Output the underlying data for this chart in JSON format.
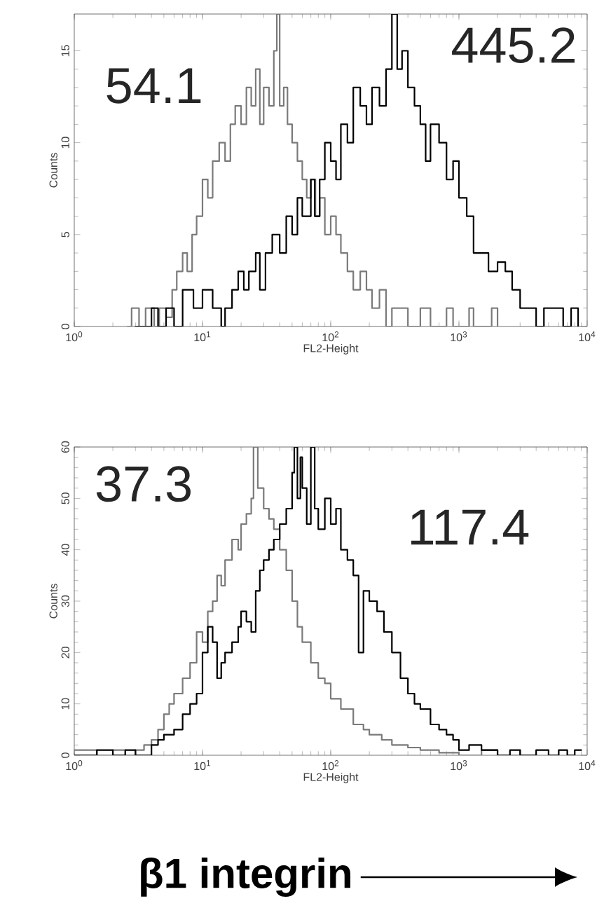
{
  "chart_data": [
    {
      "type": "step",
      "xlabel": "FL2-Height",
      "ylabel": "Counts",
      "log": "x",
      "xlim": [
        1,
        10000
      ],
      "ylim": [
        0,
        17
      ],
      "xticks": [
        {
          "value": 1,
          "label": "10$^{0}$"
        },
        {
          "value": 10,
          "label": "10$^{1}$"
        },
        {
          "value": 100,
          "label": "10$^{2}$"
        },
        {
          "value": 1000,
          "label": "10$^{3}$"
        },
        {
          "value": 10000,
          "label": "10$^{4}$"
        }
      ],
      "yticks": [
        0,
        5,
        10,
        15
      ],
      "annotations": [
        "54.1",
        "445.2"
      ],
      "series": [
        {
          "color": "#7a7a7a",
          "x": [
            2.6,
            2.8,
            3.2,
            3.6,
            4.2,
            4.6,
            5.2,
            5.8,
            6.3,
            7,
            7.6,
            8.3,
            9,
            10,
            11,
            12,
            13.5,
            15,
            16.5,
            18,
            20,
            22,
            24,
            26,
            28,
            30,
            33,
            36,
            38,
            40,
            43,
            46,
            50,
            55,
            60,
            65,
            70,
            76,
            82,
            90,
            100,
            110,
            120,
            135,
            150,
            170,
            190,
            210,
            240,
            270,
            300,
            400,
            500,
            600,
            800,
            900,
            1200,
            1300,
            1800,
            2000
          ],
          "values": [
            0,
            1,
            0,
            1,
            0,
            1,
            0.5,
            2,
            3,
            4,
            3,
            5,
            6,
            8,
            7,
            9,
            10,
            9,
            11,
            12,
            11,
            13,
            12,
            14,
            11,
            13,
            12,
            15,
            17,
            12,
            13,
            11,
            10,
            9,
            8,
            7,
            8,
            6,
            7,
            5,
            6,
            5,
            4,
            3,
            2,
            3,
            2,
            1,
            2,
            0,
            1,
            0,
            1,
            0,
            1,
            0,
            1,
            0,
            1,
            0
          ]
        },
        {
          "color": "#000000",
          "x": [
            3,
            4,
            4.5,
            5.2,
            6,
            7,
            8.5,
            10,
            12,
            14,
            15,
            17,
            19,
            21,
            23,
            26,
            28,
            31,
            35,
            40,
            45,
            50,
            55,
            60,
            70,
            75,
            82,
            90,
            100,
            110,
            120,
            135,
            150,
            170,
            190,
            210,
            240,
            270,
            300,
            330,
            360,
            400,
            450,
            500,
            550,
            600,
            700,
            800,
            900,
            1000,
            1150,
            1300,
            1500,
            1700,
            2000,
            2300,
            2600,
            3000,
            3500,
            4000,
            4600,
            5500,
            6500,
            7500,
            8500
          ],
          "values": [
            0,
            1,
            0,
            1,
            0,
            2,
            1,
            2,
            1,
            0,
            1,
            2,
            3,
            2,
            3,
            4,
            2,
            4,
            5,
            4,
            6,
            5,
            7,
            6,
            8,
            6,
            8,
            10,
            9,
            8,
            11,
            10,
            13,
            12,
            11,
            13,
            12,
            14,
            17,
            14,
            15,
            13,
            12,
            11,
            9,
            11,
            10,
            8,
            9,
            7,
            6,
            4,
            4,
            3,
            3.5,
            3,
            2,
            1,
            1,
            0,
            1,
            1,
            0,
            1,
            0
          ]
        }
      ]
    },
    {
      "type": "step",
      "xlabel": "FL2-Height",
      "ylabel": "Counts",
      "log": "x",
      "xlim": [
        1,
        10000
      ],
      "ylim": [
        0,
        60
      ],
      "xticks": [
        {
          "value": 1,
          "label": "10$^{0}$"
        },
        {
          "value": 10,
          "label": "10$^{1}$"
        },
        {
          "value": 100,
          "label": "10$^{2}$"
        },
        {
          "value": 1000,
          "label": "10$^{3}$"
        },
        {
          "value": 10000,
          "label": "10$^{4}$"
        }
      ],
      "yticks": [
        0,
        10,
        20,
        30,
        40,
        50,
        60
      ],
      "annotations": [
        "37.3",
        "117.4",
        "**β1 integrin**"
      ],
      "series": [
        {
          "color": "#7a7a7a",
          "x": [
            1,
            1.5,
            2,
            2.5,
            3,
            3.5,
            4,
            4.5,
            5,
            5.5,
            6,
            7,
            8,
            9,
            10,
            11,
            12,
            13,
            14,
            15,
            17,
            19,
            20,
            22,
            24,
            25,
            27,
            30,
            33,
            36,
            40,
            45,
            50,
            55,
            60,
            70,
            80,
            90,
            100,
            120,
            150,
            180,
            200,
            250,
            300,
            400,
            500,
            700,
            1000,
            1500,
            2000,
            3000
          ],
          "values": [
            1,
            0,
            1,
            0,
            1,
            2,
            3,
            5,
            8,
            10,
            12,
            15,
            18,
            24,
            22,
            28,
            30,
            35,
            33,
            38,
            42,
            40,
            45,
            47,
            50,
            60,
            52,
            48,
            46,
            44,
            40,
            36,
            30,
            25,
            22,
            18,
            15,
            14,
            11,
            9,
            6,
            5,
            4,
            3,
            2,
            1.5,
            1,
            0.5,
            0,
            1,
            0,
            1
          ]
        },
        {
          "color": "#000000",
          "x": [
            1,
            1.5,
            2,
            2.5,
            3,
            3.5,
            4,
            4.5,
            5,
            6,
            7,
            8,
            9,
            10,
            11,
            12,
            13,
            14,
            15,
            17,
            19,
            20,
            22,
            24,
            26,
            28,
            30,
            33,
            36,
            40,
            45,
            50,
            52,
            55,
            58,
            60,
            65,
            70,
            75,
            80,
            90,
            100,
            110,
            120,
            135,
            150,
            165,
            180,
            200,
            230,
            260,
            300,
            350,
            400,
            450,
            500,
            600,
            700,
            800,
            900,
            1000,
            1200,
            1500,
            2000,
            2500,
            3000,
            4000,
            5000,
            6000,
            7000,
            8000,
            9000
          ],
          "values": [
            0,
            1,
            0,
            1,
            0,
            0,
            2,
            3,
            4,
            5,
            8,
            10,
            12,
            20,
            25,
            22,
            15,
            18,
            20,
            22,
            25,
            28,
            26,
            24,
            32,
            36,
            38,
            40,
            42,
            45,
            48,
            55,
            60,
            50,
            58,
            52,
            45,
            60,
            48,
            44,
            50,
            45,
            48,
            40,
            38,
            35,
            20,
            32,
            30,
            28,
            24,
            20,
            15,
            12,
            10,
            9,
            6,
            5,
            4,
            3,
            1,
            2,
            1,
            0,
            1,
            0,
            1,
            0,
            1,
            0,
            1,
            1
          ]
        }
      ]
    }
  ]
}
